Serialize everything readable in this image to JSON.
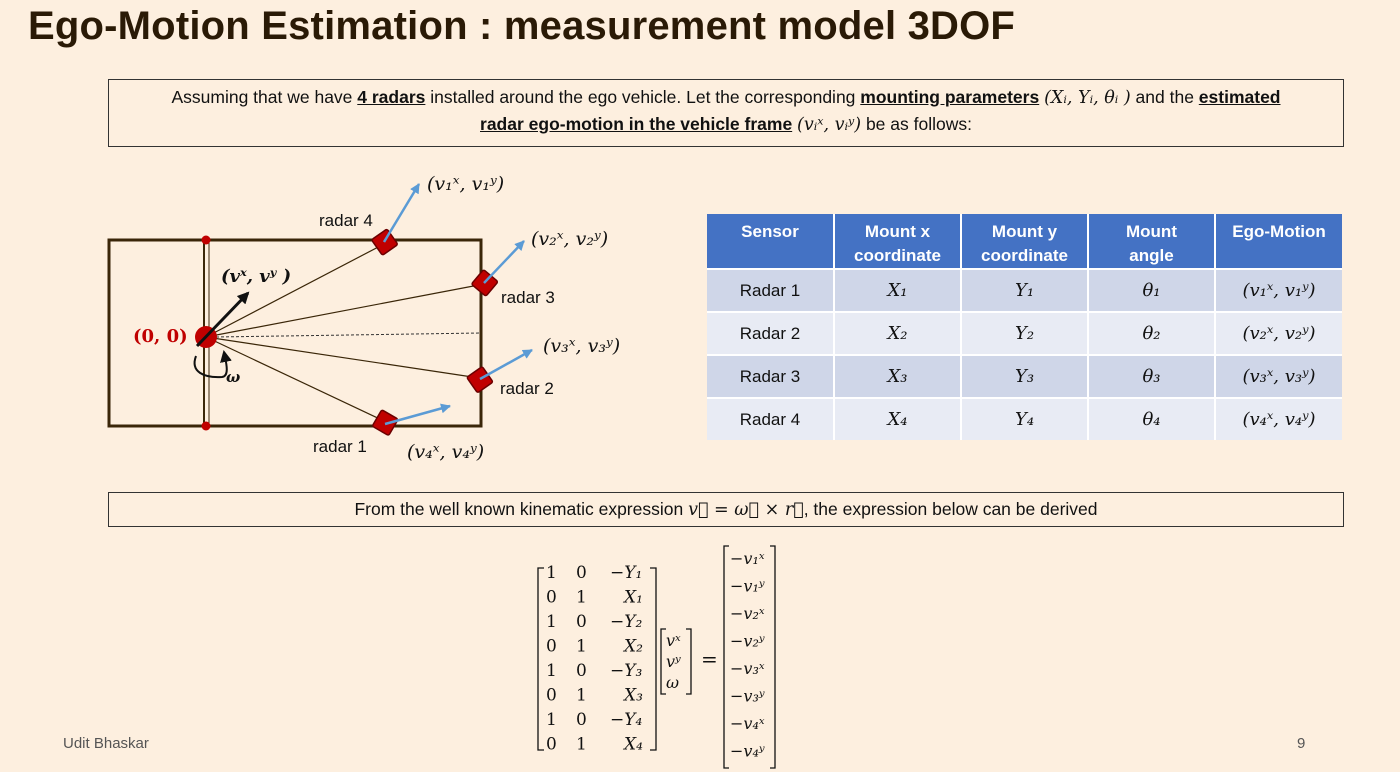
{
  "slide": {
    "title": "Ego-Motion Estimation : measurement model 3DOF",
    "footer_author": "Udit Bhaskar",
    "page_number": "9"
  },
  "intro": {
    "text_1": "Assuming that we have ",
    "bold_radars": "4 radars",
    "text_2": " installed around the ego vehicle. Let the corresponding ",
    "bold_mounting": "mounting parameters",
    "math_mount": "(Xᵢ, Yᵢ, θᵢ )",
    "text_3": " and the ",
    "bold_estimated": "estimated",
    "bold_egomotion": "radar ego-motion in the vehicle frame",
    "math_ego": "(vᵢˣ, vᵢʸ)",
    "text_4": " be as follows:"
  },
  "diagram": {
    "origin_label": "(0, 0)",
    "velocity_label": "(vˣ, vʸ )",
    "omega_label": "ω",
    "radar_labels": [
      "radar 4",
      "radar 3",
      "radar 2",
      "radar 1"
    ],
    "ego_labels": [
      "(v₁ˣ, v₁ʸ)",
      "(v₂ˣ, v₂ʸ)",
      "(v₃ˣ, v₃ʸ)",
      "(v₄ˣ, v₄ʸ)"
    ],
    "colors": {
      "vehicle": "#3a2608",
      "radar": "#c00000",
      "ego_arrow": "#5b9bd5",
      "origin_text": "#c00000"
    }
  },
  "table": {
    "headers": [
      "Sensor",
      "Mount x\ncoordinate",
      "Mount y\ncoordinate",
      "Mount\nangle",
      "Ego-Motion"
    ],
    "rows": [
      [
        "Radar 1",
        "X₁",
        "Y₁",
        "θ₁",
        "(v₁ˣ, v₁ʸ)"
      ],
      [
        "Radar 2",
        "X₂",
        "Y₂",
        "θ₂",
        "(v₂ˣ, v₂ʸ)"
      ],
      [
        "Radar 3",
        "X₃",
        "Y₃",
        "θ₃",
        "(v₃ˣ, v₃ʸ)"
      ],
      [
        "Radar 4",
        "X₄",
        "Y₄",
        "θ₄",
        "(v₄ˣ, v₄ʸ)"
      ]
    ],
    "colors": {
      "header": "#4472c4",
      "row_dark": "#cfd6e8",
      "row_light": "#e8ebf4"
    }
  },
  "kinematic": {
    "text_1": "From the well known kinematic expression ",
    "math": "v⃗ = ω⃗ × r⃗",
    "text_2": ", the expression below can be derived"
  },
  "equation": {
    "matrix": [
      [
        "1",
        "0",
        "−Y₁"
      ],
      [
        "0",
        "1",
        "X₁"
      ],
      [
        "1",
        "0",
        "−Y₂"
      ],
      [
        "0",
        "1",
        "X₂"
      ],
      [
        "1",
        "0",
        "−Y₃"
      ],
      [
        "0",
        "1",
        "X₃"
      ],
      [
        "1",
        "0",
        "−Y₄"
      ],
      [
        "0",
        "1",
        "X₄"
      ]
    ],
    "unknowns": [
      "vˣ",
      "vʸ",
      "ω"
    ],
    "equals": "=",
    "rhs": [
      "−v₁ˣ",
      "−v₁ʸ",
      "−v₂ˣ",
      "−v₂ʸ",
      "−v₃ˣ",
      "−v₃ʸ",
      "−v₄ˣ",
      "−v₄ʸ"
    ]
  }
}
